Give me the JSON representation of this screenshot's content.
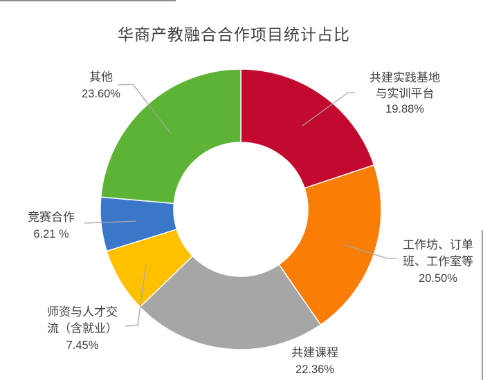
{
  "chart_data": {
    "type": "pie",
    "subtype": "donut",
    "title": "华商产教融合合作项目统计占比",
    "start_angle_deg": 0,
    "direction": "clockwise",
    "legend": "none",
    "segments": [
      {
        "label": "共建实践基地与实训平台",
        "label_lines": [
          "共建实践基地",
          "与实训平台"
        ],
        "value": 19.88,
        "pct_text": "19.88%",
        "color": "#C30A2E"
      },
      {
        "label": "工作坊、订单班、工作室等",
        "label_lines": [
          "工作坊、订单",
          "班、工作室等"
        ],
        "value": 20.5,
        "pct_text": "20.50%",
        "color": "#FA7D05"
      },
      {
        "label": "共建课程",
        "label_lines": [
          "共建课程"
        ],
        "value": 22.36,
        "pct_text": "22.36%",
        "color": "#A6A6A6"
      },
      {
        "label": "师资与人才交流（含就业）",
        "label_lines": [
          "师资与人才交",
          "流（含就业）"
        ],
        "value": 7.45,
        "pct_text": "7.45%",
        "color": "#FFC000"
      },
      {
        "label": "竞赛合作",
        "label_lines": [
          "竞赛合作"
        ],
        "value": 6.21,
        "pct_text": "6.21 %",
        "color": "#3B77C9"
      },
      {
        "label": "其他",
        "label_lines": [
          "其他"
        ],
        "value": 23.6,
        "pct_text": "23.60%",
        "color": "#5CB335"
      }
    ],
    "leader_line_color": "#A6A6A6",
    "text_color": "#404040"
  }
}
